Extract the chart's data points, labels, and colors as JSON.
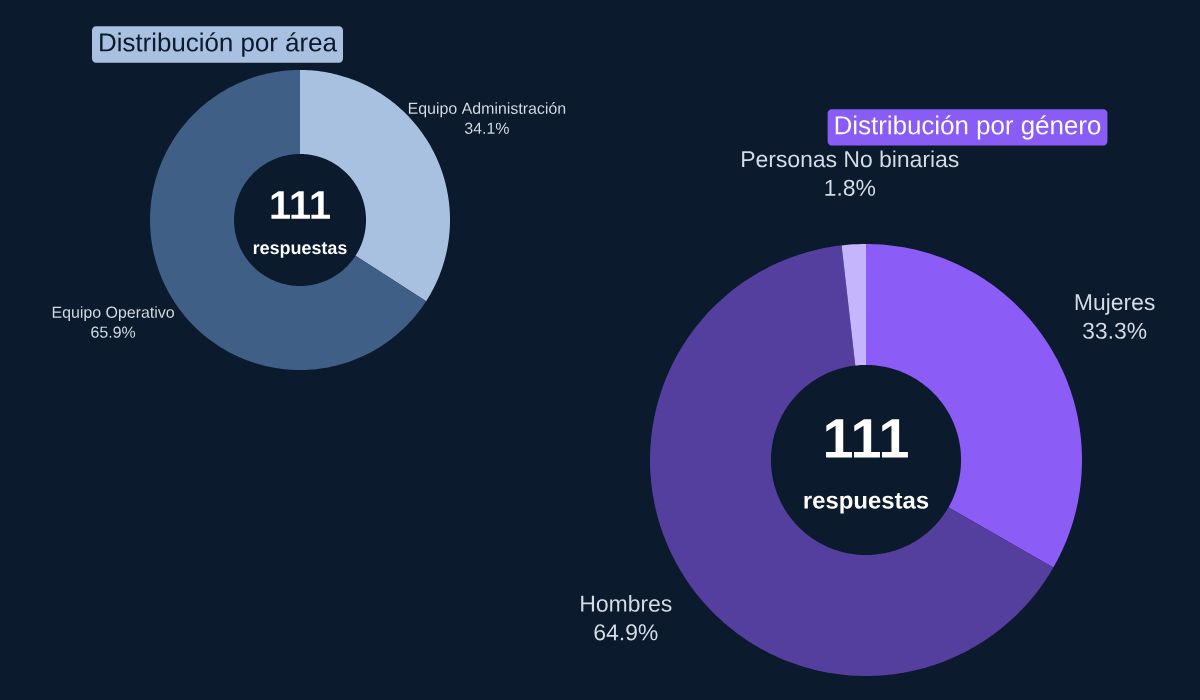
{
  "chart_data": [
    {
      "type": "donut",
      "title": "Distribución por área",
      "categories": [
        "Equipo Administración",
        "Equipo Operativo"
      ],
      "values": [
        34.1,
        65.9
      ],
      "colors": [
        "#a9c1e0",
        "#3f5f87"
      ],
      "value_labels": [
        "34.1%",
        "65.9%"
      ],
      "annotations": [
        "111",
        "respuestas"
      ]
    },
    {
      "type": "donut",
      "title": "Distribución por género",
      "categories": [
        "Mujeres",
        "Hombres",
        "Personas No binarias"
      ],
      "values": [
        33.3,
        64.9,
        1.8
      ],
      "colors": [
        "#8b5cf6",
        "#553f9e",
        "#c4b5fd"
      ],
      "value_labels": [
        "33.3%",
        "64.9%",
        "1.8%"
      ],
      "annotations": [
        "111",
        "respuestas"
      ]
    }
  ]
}
